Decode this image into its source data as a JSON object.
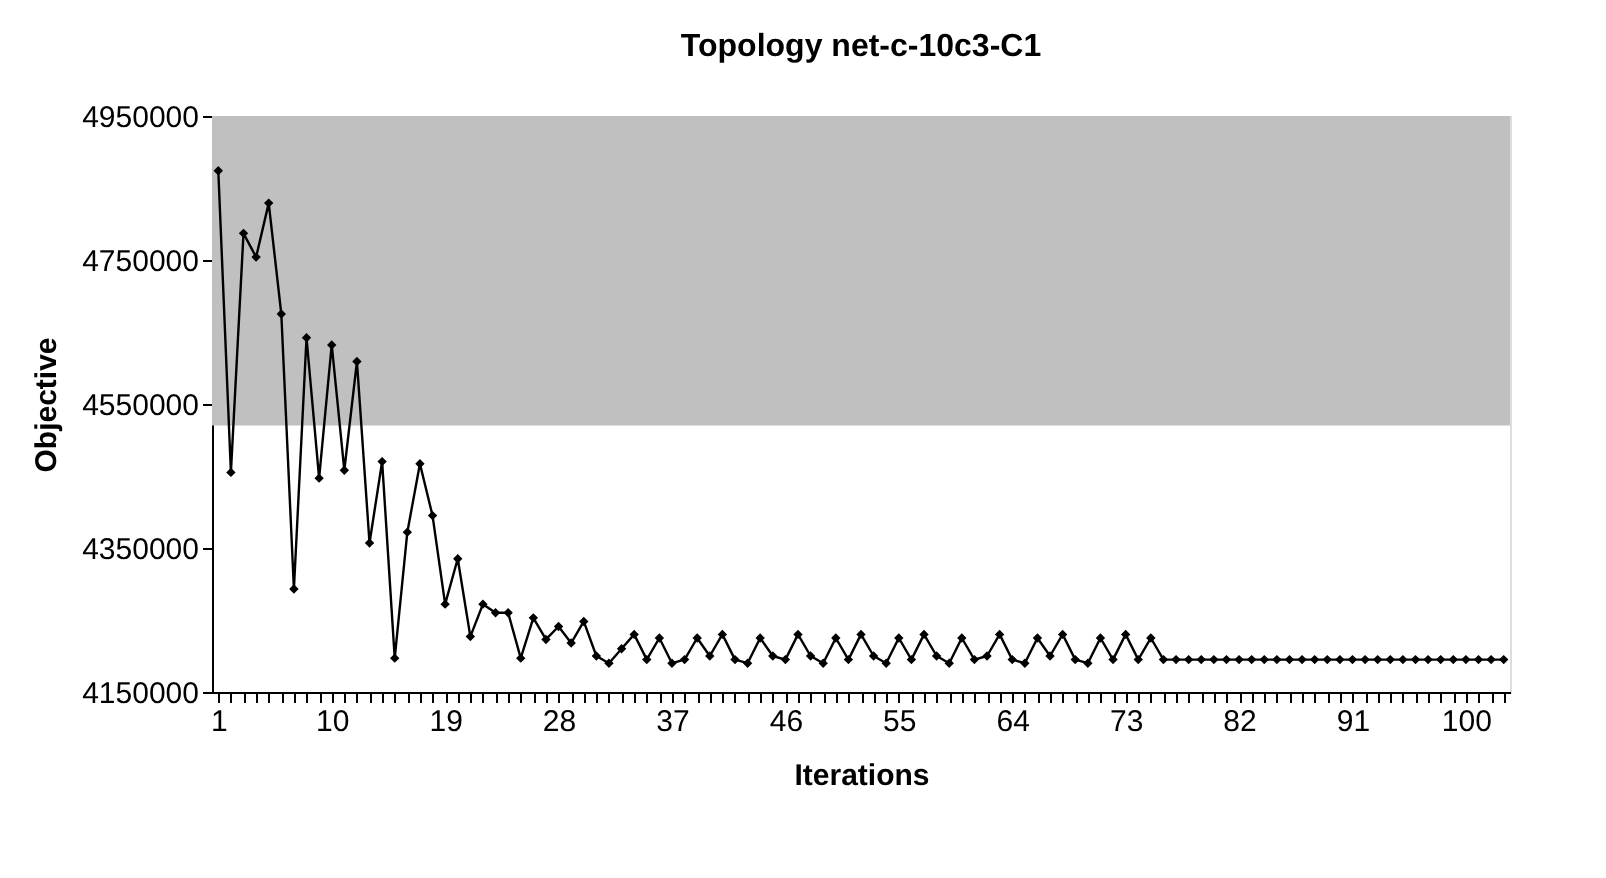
{
  "chart_data": {
    "type": "line",
    "title": "Topology net-c-10c3-C1",
    "xlabel": "Iterations",
    "ylabel": "Objective",
    "x": [
      1,
      2,
      3,
      4,
      5,
      6,
      7,
      8,
      9,
      10,
      11,
      12,
      13,
      14,
      15,
      16,
      17,
      18,
      19,
      20,
      21,
      22,
      23,
      24,
      25,
      26,
      27,
      28,
      29,
      30,
      31,
      32,
      33,
      34,
      35,
      36,
      37,
      38,
      39,
      40,
      41,
      42,
      43,
      44,
      45,
      46,
      47,
      48,
      49,
      50,
      51,
      52,
      53,
      54,
      55,
      56,
      57,
      58,
      59,
      60,
      61,
      62,
      63,
      64,
      65,
      66,
      67,
      68,
      69,
      70,
      71,
      72,
      73,
      74,
      75,
      76,
      77,
      78,
      79,
      80,
      81,
      82,
      83,
      84,
      85,
      86,
      87,
      88,
      89,
      90,
      91,
      92,
      93,
      94,
      95,
      96,
      97,
      98,
      99,
      100,
      101,
      102,
      103
    ],
    "series": [
      {
        "color": "#000000",
        "values": [
          4874000,
          4455000,
          4787000,
          4754000,
          4829000,
          4675000,
          4293000,
          4642000,
          4447000,
          4632000,
          4458000,
          4609000,
          4357000,
          4470000,
          4197000,
          4372000,
          4467000,
          4395000,
          4272000,
          4335000,
          4227000,
          4272000,
          4260000,
          4260000,
          4197000,
          4253000,
          4223000,
          4241000,
          4218000,
          4248000,
          4200000,
          4190000,
          4210000,
          4230000,
          4195000,
          4225000,
          4190000,
          4195000,
          4225000,
          4200000,
          4230000,
          4195000,
          4190000,
          4225000,
          4200000,
          4195000,
          4230000,
          4200000,
          4190000,
          4225000,
          4195000,
          4230000,
          4200000,
          4190000,
          4225000,
          4195000,
          4230000,
          4200000,
          4190000,
          4225000,
          4195000,
          4200000,
          4230000,
          4195000,
          4190000,
          4225000,
          4200000,
          4230000,
          4195000,
          4190000,
          4225000,
          4195000,
          4230000,
          4195000,
          4225000,
          4195000,
          4195000,
          4195000,
          4195000,
          4195000,
          4195000,
          4195000,
          4195000,
          4195000,
          4195000,
          4195000,
          4195000,
          4195000,
          4195000,
          4195000,
          4195000,
          4195000,
          4195000,
          4195000,
          4195000,
          4195000,
          4195000,
          4195000,
          4195000,
          4195000,
          4195000,
          4195000,
          4195000
        ]
      }
    ],
    "xlim": [
      0.5,
      103.5
    ],
    "xticks": [
      1,
      {
        "value": 2,
        "label": null
      },
      {
        "value": 3,
        "label": null
      },
      {
        "value": 4,
        "label": null
      },
      {
        "value": 5,
        "label": null
      },
      {
        "value": 6,
        "label": null
      },
      {
        "value": 7,
        "label": null
      },
      {
        "value": 8,
        "label": null
      },
      {
        "value": 9,
        "label": null
      },
      10,
      {
        "value": 11,
        "label": null
      },
      {
        "value": 12,
        "label": null
      },
      {
        "value": 13,
        "label": null
      },
      {
        "value": 14,
        "label": null
      },
      {
        "value": 15,
        "label": null
      },
      {
        "value": 16,
        "label": null
      },
      {
        "value": 17,
        "label": null
      },
      {
        "value": 18,
        "label": null
      },
      19,
      {
        "value": 20,
        "label": null
      },
      {
        "value": 21,
        "label": null
      },
      {
        "value": 22,
        "label": null
      },
      {
        "value": 23,
        "label": null
      },
      {
        "value": 24,
        "label": null
      },
      {
        "value": 25,
        "label": null
      },
      {
        "value": 26,
        "label": null
      },
      {
        "value": 27,
        "label": null
      },
      28,
      {
        "value": 29,
        "label": null
      },
      {
        "value": 30,
        "label": null
      },
      {
        "value": 31,
        "label": null
      },
      {
        "value": 32,
        "label": null
      },
      {
        "value": 33,
        "label": null
      },
      {
        "value": 34,
        "label": null
      },
      {
        "value": 35,
        "label": null
      },
      {
        "value": 36,
        "label": null
      },
      37,
      {
        "value": 38,
        "label": null
      },
      {
        "value": 39,
        "label": null
      },
      {
        "value": 40,
        "label": null
      },
      {
        "value": 41,
        "label": null
      },
      {
        "value": 42,
        "label": null
      },
      {
        "value": 43,
        "label": null
      },
      {
        "value": 44,
        "label": null
      },
      {
        "value": 45,
        "label": null
      },
      46,
      {
        "value": 47,
        "label": null
      },
      {
        "value": 48,
        "label": null
      },
      {
        "value": 49,
        "label": null
      },
      {
        "value": 50,
        "label": null
      },
      {
        "value": 51,
        "label": null
      },
      {
        "value": 52,
        "label": null
      },
      {
        "value": 53,
        "label": null
      },
      {
        "value": 54,
        "label": null
      },
      55,
      {
        "value": 56,
        "label": null
      },
      {
        "value": 57,
        "label": null
      },
      {
        "value": 58,
        "label": null
      },
      {
        "value": 59,
        "label": null
      },
      {
        "value": 60,
        "label": null
      },
      {
        "value": 61,
        "label": null
      },
      {
        "value": 62,
        "label": null
      },
      {
        "value": 63,
        "label": null
      },
      64,
      {
        "value": 65,
        "label": null
      },
      {
        "value": 66,
        "label": null
      },
      {
        "value": 67,
        "label": null
      },
      {
        "value": 68,
        "label": null
      },
      {
        "value": 69,
        "label": null
      },
      {
        "value": 70,
        "label": null
      },
      {
        "value": 71,
        "label": null
      },
      {
        "value": 72,
        "label": null
      },
      73,
      {
        "value": 74,
        "label": null
      },
      {
        "value": 75,
        "label": null
      },
      {
        "value": 76,
        "label": null
      },
      {
        "value": 77,
        "label": null
      },
      {
        "value": 78,
        "label": null
      },
      {
        "value": 79,
        "label": null
      },
      {
        "value": 80,
        "label": null
      },
      {
        "value": 81,
        "label": null
      },
      82,
      {
        "value": 83,
        "label": null
      },
      {
        "value": 84,
        "label": null
      },
      {
        "value": 85,
        "label": null
      },
      {
        "value": 86,
        "label": null
      },
      {
        "value": 87,
        "label": null
      },
      {
        "value": 88,
        "label": null
      },
      {
        "value": 89,
        "label": null
      },
      {
        "value": 90,
        "label": null
      },
      91,
      {
        "value": 92,
        "label": null
      },
      {
        "value": 93,
        "label": null
      },
      {
        "value": 94,
        "label": null
      },
      {
        "value": 95,
        "label": null
      },
      {
        "value": 96,
        "label": null
      },
      {
        "value": 97,
        "label": null
      },
      {
        "value": 98,
        "label": null
      },
      {
        "value": 99,
        "label": null
      },
      100,
      {
        "value": 101,
        "label": null
      },
      {
        "value": 102,
        "label": null
      },
      {
        "value": 103,
        "label": null
      }
    ],
    "ylim": [
      4150000,
      4950000
    ],
    "yticks": [
      4150000,
      4350000,
      4550000,
      4750000,
      4950000
    ],
    "bands": [
      {
        "axis": "y",
        "from": 4520000,
        "to": 4950000,
        "color": "#c0c0c0"
      }
    ],
    "grid": false,
    "marker": "diamond",
    "line_style": "solid"
  }
}
